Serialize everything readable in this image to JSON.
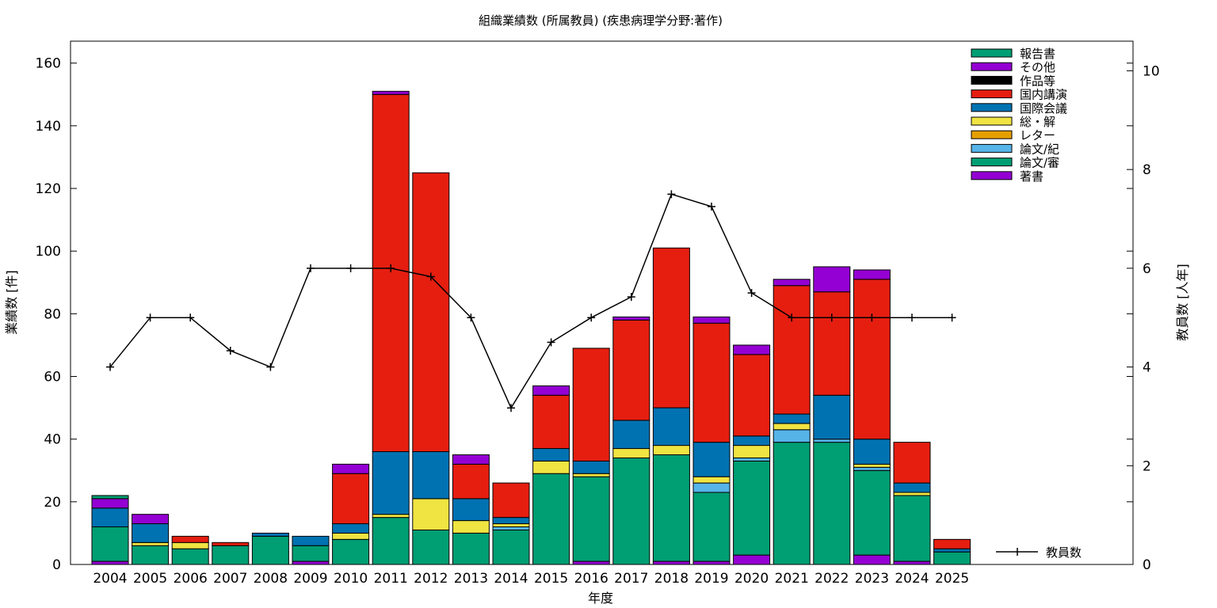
{
  "chart_data": {
    "type": "bar",
    "stacked": true,
    "title": "組織業績数 (所属教員) (疾患病理学分野:著作)",
    "xlabel": "年度",
    "ylabel": "業績数 [件]",
    "y2label": "教員数 [人年]",
    "ylim": [
      0,
      167
    ],
    "y2lim": [
      0,
      10.6
    ],
    "yticks": [
      0,
      20,
      40,
      60,
      80,
      100,
      120,
      140,
      160
    ],
    "y2ticks": [
      0,
      2,
      4,
      6,
      8,
      10
    ],
    "categories": [
      "2004",
      "2005",
      "2006",
      "2007",
      "2008",
      "2009",
      "2010",
      "2011",
      "2012",
      "2013",
      "2014",
      "2015",
      "2016",
      "2017",
      "2018",
      "2019",
      "2020",
      "2021",
      "2022",
      "2023",
      "2024",
      "2025"
    ],
    "series": [
      {
        "name": "著書",
        "color": "#9400d3",
        "values": [
          1,
          0,
          0,
          0,
          0,
          1,
          0,
          0,
          0,
          0,
          0,
          0,
          1,
          0,
          1,
          1,
          3,
          0,
          0,
          3,
          1,
          0
        ]
      },
      {
        "name": "論文/審",
        "color": "#009e73",
        "values": [
          11,
          6,
          5,
          6,
          9,
          5,
          8,
          15,
          11,
          10,
          11,
          29,
          27,
          34,
          34,
          22,
          30,
          39,
          39,
          27,
          21,
          4
        ]
      },
      {
        "name": "論文/紀",
        "color": "#56b4e9",
        "values": [
          0,
          0,
          0,
          0,
          0,
          0,
          0,
          0,
          0,
          0,
          1,
          0,
          0,
          0,
          0,
          3,
          1,
          4,
          1,
          1,
          0,
          0
        ]
      },
      {
        "name": "レター",
        "color": "#e69f00",
        "values": [
          0,
          0,
          0,
          0,
          0,
          0,
          0,
          0,
          0,
          0,
          0,
          0,
          0,
          0,
          0,
          0,
          0,
          0,
          0,
          0,
          0,
          0
        ]
      },
      {
        "name": "総・解",
        "color": "#f0e442",
        "values": [
          0,
          1,
          2,
          0,
          0,
          0,
          2,
          1,
          10,
          4,
          1,
          4,
          1,
          3,
          3,
          2,
          4,
          2,
          0,
          1,
          1,
          0
        ]
      },
      {
        "name": "国際会議",
        "color": "#0072b2",
        "values": [
          6,
          6,
          0,
          0,
          1,
          3,
          3,
          20,
          15,
          7,
          2,
          4,
          4,
          9,
          12,
          11,
          3,
          3,
          14,
          8,
          3,
          1
        ]
      },
      {
        "name": "国内講演",
        "color": "#e51e10",
        "values": [
          0,
          0,
          2,
          1,
          0,
          0,
          16,
          114,
          89,
          11,
          11,
          17,
          36,
          32,
          51,
          38,
          26,
          41,
          33,
          51,
          13,
          3
        ]
      },
      {
        "name": "作品等",
        "color": "#000000",
        "values": [
          0,
          0,
          0,
          0,
          0,
          0,
          0,
          0,
          0,
          0,
          0,
          0,
          0,
          0,
          0,
          0,
          0,
          0,
          0,
          0,
          0,
          0
        ]
      },
      {
        "name": "その他",
        "color": "#9400d3",
        "values": [
          3,
          3,
          0,
          0,
          0,
          0,
          3,
          1,
          0,
          3,
          0,
          3,
          0,
          1,
          0,
          2,
          3,
          2,
          8,
          3,
          0,
          0
        ]
      },
      {
        "name": "報告書",
        "color": "#009e73",
        "values": [
          1,
          0,
          0,
          0,
          0,
          0,
          0,
          0,
          0,
          0,
          0,
          0,
          0,
          0,
          0,
          0,
          0,
          0,
          0,
          0,
          0,
          0
        ]
      }
    ],
    "line": {
      "name": "教員数",
      "color": "#000000",
      "axis": "y2",
      "values": [
        4,
        5,
        5,
        4.33,
        4,
        6,
        6,
        6,
        5.83,
        5,
        3.17,
        4.5,
        5,
        5.42,
        7.5,
        7.25,
        5.5,
        5,
        5,
        5,
        5,
        5
      ]
    },
    "legend_position": "top-right"
  }
}
